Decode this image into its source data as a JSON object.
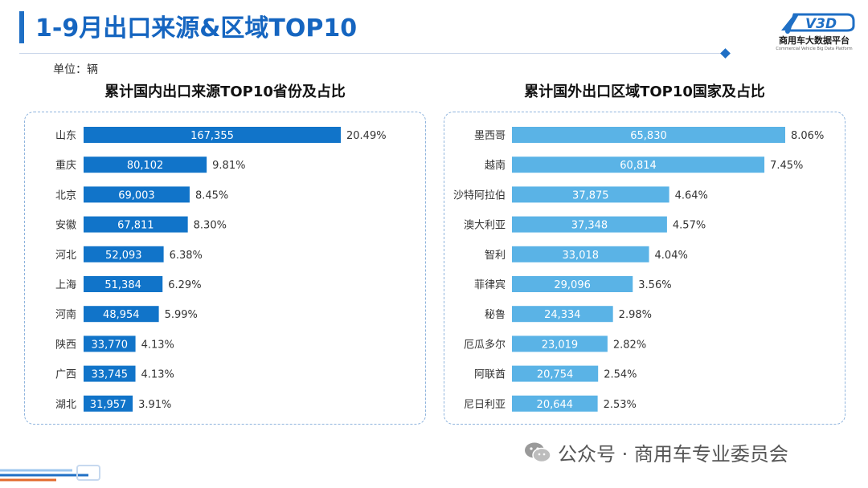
{
  "header": {
    "title": "1-9月出口来源&区域TOP10",
    "logo_text": "商用车大数据平台",
    "logo_sub": "Commercial Vehicle Big Data Platform",
    "logo_mark": "V3D"
  },
  "unit_label": "单位：辆",
  "footer": {
    "brand": "公众号 · 商用车专业委员会"
  },
  "colors": {
    "left_bar": "#1174c9",
    "right_bar": "#5ab3e6",
    "title": "#1565c0"
  },
  "chart_data": [
    {
      "type": "bar",
      "orientation": "horizontal",
      "title": "累计国内出口来源TOP10省份及占比",
      "categories": [
        "山东",
        "重庆",
        "北京",
        "安徽",
        "河北",
        "上海",
        "河南",
        "陕西",
        "广西",
        "湖北"
      ],
      "values": [
        167355,
        80102,
        69003,
        67811,
        52093,
        51384,
        48954,
        33770,
        33745,
        31957
      ],
      "value_labels": [
        "167,355",
        "80,102",
        "69,003",
        "67,811",
        "52,093",
        "51,384",
        "48,954",
        "33,770",
        "33,745",
        "31,957"
      ],
      "shares": [
        "20.49%",
        "9.81%",
        "8.45%",
        "8.30%",
        "6.38%",
        "6.29%",
        "5.99%",
        "4.13%",
        "4.13%",
        "3.91%"
      ],
      "grid": false
    },
    {
      "type": "bar",
      "orientation": "horizontal",
      "title": "累计国外出口区域TOP10国家及占比",
      "categories": [
        "墨西哥",
        "越南",
        "沙特阿拉伯",
        "澳大利亚",
        "智利",
        "菲律宾",
        "秘鲁",
        "厄瓜多尔",
        "阿联酋",
        "尼日利亚"
      ],
      "values": [
        65830,
        60814,
        37875,
        37348,
        33018,
        29096,
        24334,
        23019,
        20754,
        20644
      ],
      "value_labels": [
        "65,830",
        "60,814",
        "37,875",
        "37,348",
        "33,018",
        "29,096",
        "24,334",
        "23,019",
        "20,754",
        "20,644"
      ],
      "shares": [
        "8.06%",
        "7.45%",
        "4.64%",
        "4.57%",
        "4.04%",
        "3.56%",
        "2.98%",
        "2.82%",
        "2.54%",
        "2.53%"
      ],
      "grid": false
    }
  ]
}
